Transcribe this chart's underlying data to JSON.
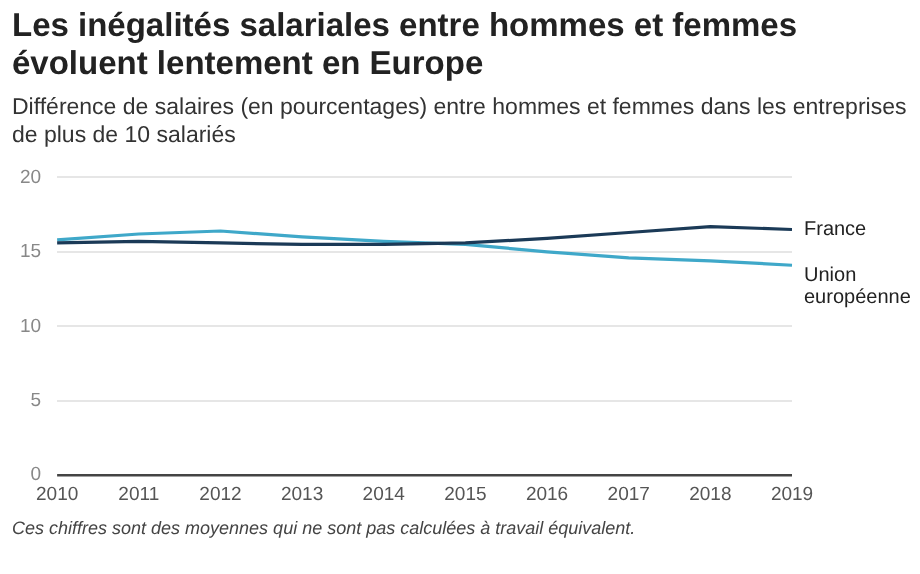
{
  "chart_data": {
    "type": "line",
    "title": "Les inégalités salariales entre hommes et femmes évoluent lentement en Europe",
    "subtitle": "Différence de salaires (en pourcentages) entre hommes et femmes dans les entreprises de plus de 10 salariés",
    "annotations": [
      "Ces chiffres sont des moyennes qui ne sont pas calculées à travail équivalent."
    ],
    "categories": [
      "2010",
      "2011",
      "2012",
      "2013",
      "2014",
      "2015",
      "2016",
      "2017",
      "2018",
      "2019"
    ],
    "series": [
      {
        "name": "France",
        "color": "#1b3a57",
        "values": [
          15.6,
          15.7,
          15.6,
          15.5,
          15.5,
          15.6,
          15.9,
          16.3,
          16.7,
          16.5
        ]
      },
      {
        "name": "Union européenne",
        "color": "#3fa8c9",
        "values": [
          15.8,
          16.2,
          16.4,
          16.0,
          15.7,
          15.5,
          15.0,
          14.6,
          14.4,
          14.1
        ]
      }
    ],
    "ylim": [
      0,
      20
    ],
    "yticks": [
      0,
      5,
      10,
      15,
      20
    ],
    "grid": "y",
    "legend": false,
    "marker": "none",
    "line_style": "solid"
  }
}
